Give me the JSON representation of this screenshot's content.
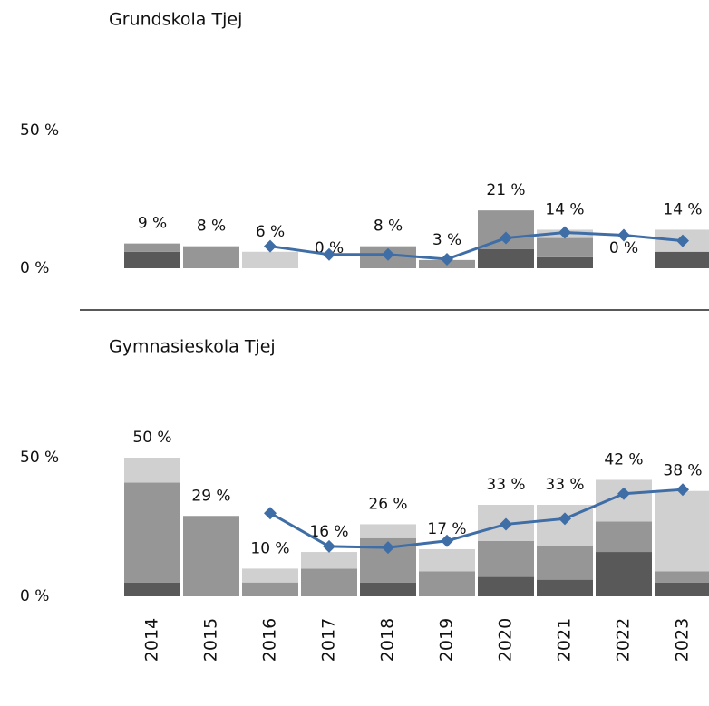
{
  "chart_data": [
    {
      "type": "stacked-bar-line",
      "title": "Grundskola Tjej",
      "ylim": [
        0,
        50
      ],
      "yticks": [
        {
          "value": 0,
          "label": "0 %"
        },
        {
          "value": 50,
          "label": "50 %"
        }
      ],
      "series": [
        {
          "color": "#595959",
          "values": [
            6,
            0,
            0,
            0,
            0,
            0,
            7,
            4,
            0,
            6
          ]
        },
        {
          "color": "#969696",
          "values": [
            3,
            8,
            0,
            0,
            8,
            3,
            14,
            7,
            0,
            0
          ]
        },
        {
          "color": "#d0d0d0",
          "values": [
            0,
            0,
            6,
            0,
            0,
            0,
            0,
            3,
            0,
            8
          ]
        }
      ],
      "totals": [
        9,
        8,
        6,
        0,
        8,
        3,
        21,
        14,
        0,
        14
      ],
      "total_labels": [
        "9 %",
        "8 %",
        "6 %",
        "0 %",
        "8 %",
        "3 %",
        "21 %",
        "14 %",
        "0 %",
        "14 %"
      ],
      "line": {
        "color": "#3f6ea6",
        "values": [
          null,
          null,
          8,
          5,
          5,
          3.3,
          11,
          13,
          12,
          10
        ]
      }
    },
    {
      "type": "stacked-bar-line",
      "title": "Gymnasieskola Tjej",
      "categories": [
        "2014",
        "2015",
        "2016",
        "2017",
        "2018",
        "2019",
        "2020",
        "2021",
        "2022",
        "2023"
      ],
      "ylim": [
        0,
        50
      ],
      "yticks": [
        {
          "value": 0,
          "label": "0 %"
        },
        {
          "value": 50,
          "label": "50 %"
        }
      ],
      "series": [
        {
          "color": "#595959",
          "values": [
            5,
            0,
            0,
            0,
            5,
            0,
            7,
            6,
            16,
            5
          ]
        },
        {
          "color": "#969696",
          "values": [
            36,
            29,
            5,
            10,
            16,
            9,
            13,
            12,
            11,
            4
          ]
        },
        {
          "color": "#d0d0d0",
          "values": [
            9,
            0,
            5,
            6,
            5,
            8,
            13,
            15,
            15,
            29
          ]
        }
      ],
      "totals": [
        50,
        29,
        10,
        16,
        26,
        17,
        33,
        33,
        42,
        38
      ],
      "total_labels": [
        "50 %",
        "29 %",
        "10 %",
        "16 %",
        "26 %",
        "17 %",
        "33 %",
        "33 %",
        "42 %",
        "38 %"
      ],
      "line": {
        "color": "#3f6ea6",
        "values": [
          null,
          null,
          30,
          18,
          17.6,
          20,
          26,
          28,
          37,
          38.5
        ]
      }
    }
  ]
}
